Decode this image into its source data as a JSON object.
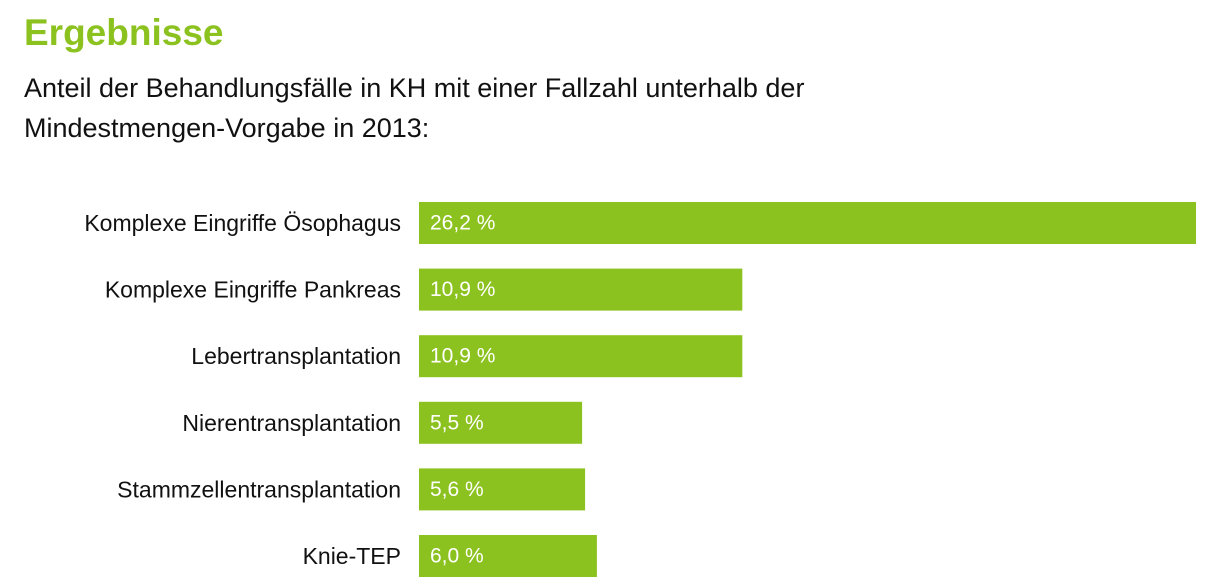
{
  "header": {
    "title": "Ergebnisse",
    "subtitle_line1": "Anteil der Behandlungsfälle in KH mit einer Fallzahl unterhalb der",
    "subtitle_line2": "Mindestmengen-Vorgabe in 2013:"
  },
  "colors": {
    "accent": "#8cc21f",
    "text": "#111111",
    "value_text": "#ffffff"
  },
  "chart_data": {
    "type": "bar",
    "orientation": "horizontal",
    "title": "Anteil der Behandlungsfälle in KH mit einer Fallzahl unterhalb der Mindestmengen-Vorgabe in 2013:",
    "xlabel": "",
    "ylabel": "",
    "unit": "%",
    "grid": false,
    "legend": "none",
    "xlim": [
      0,
      26.2
    ],
    "categories": [
      "Komplexe Eingriffe Ösophagus",
      "Komplexe Eingriffe Pankreas",
      "Lebertransplantation",
      "Nierentransplantation",
      "Stammzellentransplantation",
      "Knie-TEP"
    ],
    "values": [
      26.2,
      10.9,
      10.9,
      5.5,
      5.6,
      6.0
    ],
    "value_labels": [
      "26,2 %",
      "10,9 %",
      "10,9 %",
      "5,5 %",
      "5,6 %",
      "6,0 %"
    ]
  }
}
